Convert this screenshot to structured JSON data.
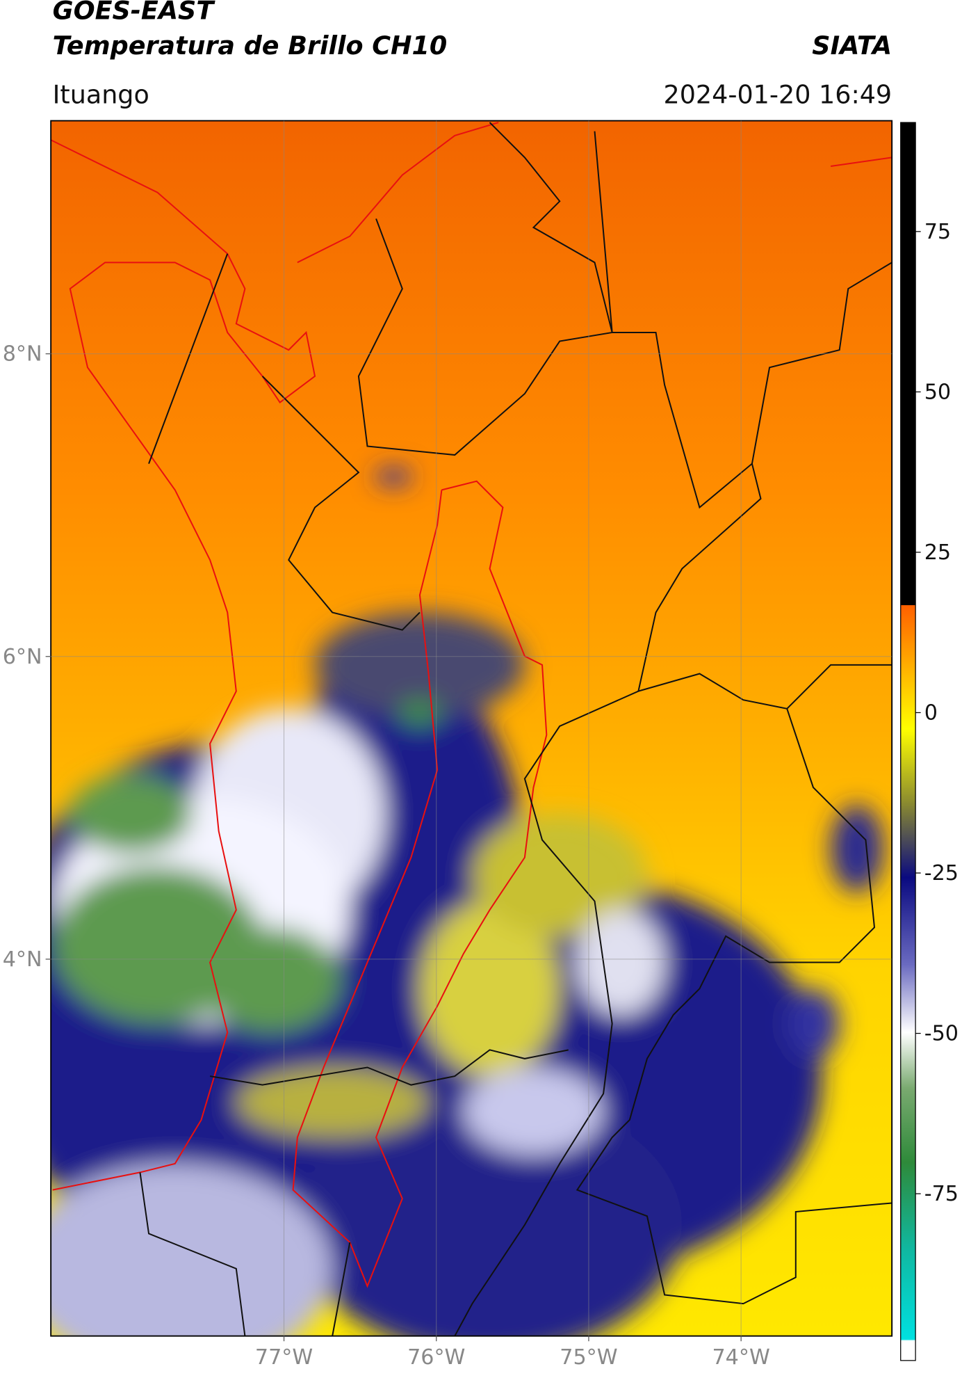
{
  "header": {
    "title": "GOES-EAST",
    "subtitle": "Temperatura de Brillo CH10",
    "source": "SIATA",
    "location": "Ituango",
    "timestamp": "2024-01-20 16:49"
  },
  "map": {
    "xlim": [
      -78.53,
      -73.01
    ],
    "ylim": [
      1.51,
      9.54
    ],
    "xticks": [
      {
        "value": -77,
        "label": "77°W"
      },
      {
        "value": -76,
        "label": "76°W"
      },
      {
        "value": -75,
        "label": "75°W"
      },
      {
        "value": -74,
        "label": "74°W"
      }
    ],
    "yticks": [
      {
        "value": 8,
        "label": "8°N"
      },
      {
        "value": 6,
        "label": "6°N"
      },
      {
        "value": 4,
        "label": "4°N"
      }
    ],
    "grid": true
  },
  "colorbar": {
    "lim": [
      -101,
      92
    ],
    "ticks": [
      75,
      50,
      25,
      0,
      -25,
      -50,
      -75
    ]
  }
}
